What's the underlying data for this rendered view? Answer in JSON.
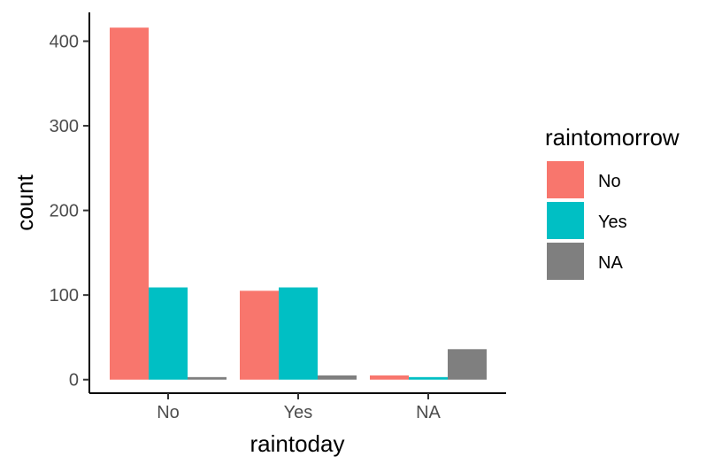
{
  "chart_data": {
    "type": "bar",
    "title": "",
    "xlabel": "raintoday",
    "ylabel": "count",
    "categories": [
      "No",
      "Yes",
      "NA"
    ],
    "series": [
      {
        "name": "No",
        "color": "#F8766D",
        "values": [
          416,
          105,
          5
        ]
      },
      {
        "name": "Yes",
        "color": "#00BFC4",
        "values": [
          109,
          109,
          3
        ]
      },
      {
        "name": "NA",
        "color": "#7F7F7F",
        "values": [
          3,
          5,
          36
        ]
      }
    ],
    "ylim": [
      -16,
      434
    ],
    "yticks": [
      0,
      100,
      200,
      300,
      400
    ],
    "legend": {
      "title": "raintomorrow",
      "placement": "right"
    },
    "grid": false
  }
}
